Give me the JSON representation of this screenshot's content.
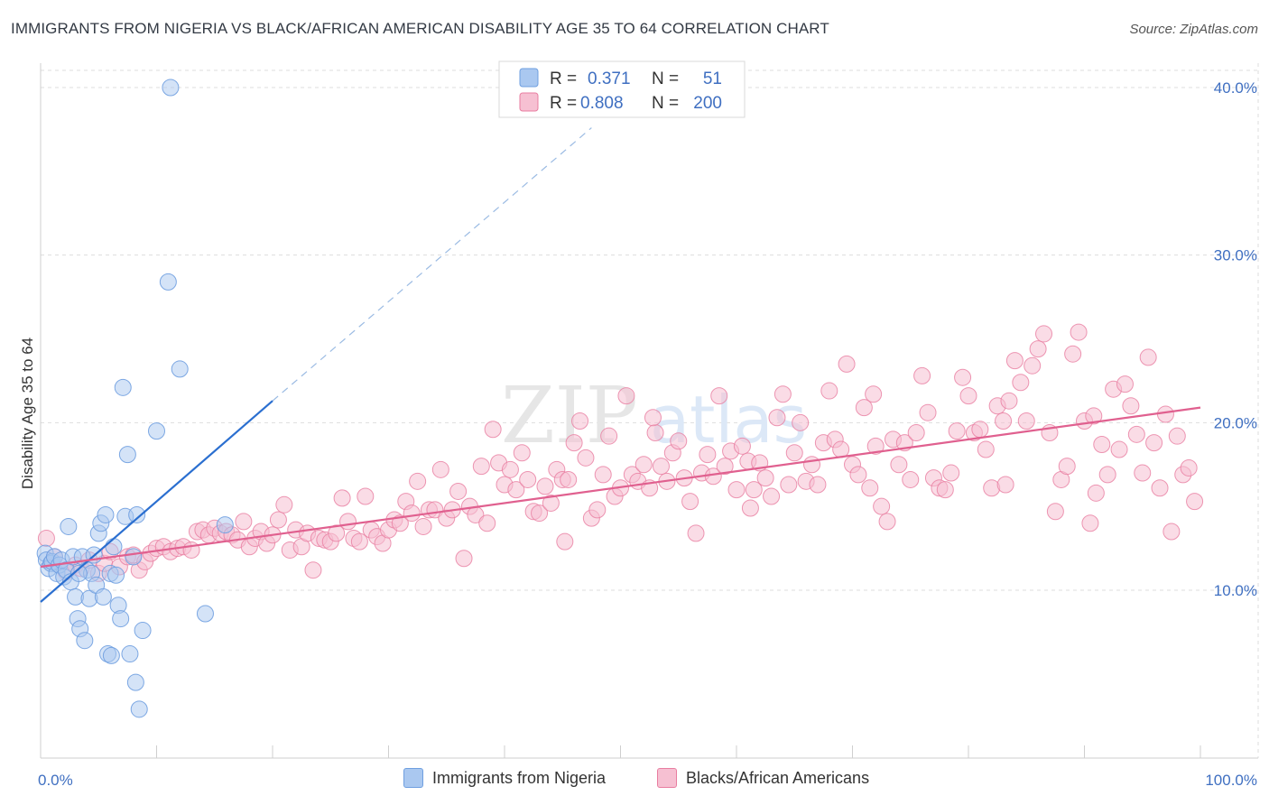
{
  "title": "IMMIGRANTS FROM NIGERIA VS BLACK/AFRICAN AMERICAN DISABILITY AGE 35 TO 64 CORRELATION CHART",
  "source": "Source: ZipAtlas.com",
  "watermark": {
    "zip": "ZIP",
    "atlas": "atlas"
  },
  "colors": {
    "blue": "#6f9fe0",
    "blue_fill": "#aac8f0",
    "blue_line": "#2b6fd0",
    "pink": "#e87da0",
    "pink_fill": "#f6c0d2",
    "pink_line": "#e0608f",
    "label": "#3f6fc1",
    "grid": "#dddddd"
  },
  "legend": {
    "rows": [
      {
        "r_label": "R =",
        "r_value": "0.371",
        "n_label": "N =",
        "n_value": "51"
      },
      {
        "r_label": "R =",
        "r_value": "0.808",
        "n_label": "N =",
        "n_value": "200"
      }
    ]
  },
  "bottom_legend": [
    "Immigrants from Nigeria",
    "Blacks/African Americans"
  ],
  "chart_data": {
    "type": "scatter",
    "title": "IMMIGRANTS FROM NIGERIA VS BLACK/AFRICAN AMERICAN DISABILITY AGE 35 TO 64 CORRELATION CHART",
    "xlabel": "",
    "ylabel": "Disability Age 35 to 64",
    "xlim": [
      0,
      100
    ],
    "ylim": [
      0,
      41
    ],
    "y_ticks": [
      10,
      20,
      30,
      40
    ],
    "y_tick_labels": [
      "10.0%",
      "20.0%",
      "30.0%",
      "40.0%"
    ],
    "x_tick_labels": [
      "0.0%",
      "100.0%"
    ],
    "grid": true,
    "legend_position": "top-center",
    "series": [
      {
        "name": "Immigrants from Nigeria",
        "trend": {
          "x": [
            0,
            20
          ],
          "y": [
            9.3,
            21.3
          ],
          "dashed_to": [
            47.5,
            37.6
          ]
        },
        "points": [
          [
            0.4,
            12.2
          ],
          [
            0.5,
            11.8
          ],
          [
            0.7,
            11.3
          ],
          [
            0.9,
            11.6
          ],
          [
            1.0,
            11.7
          ],
          [
            1.2,
            12.0
          ],
          [
            1.4,
            11.0
          ],
          [
            1.6,
            11.5
          ],
          [
            1.8,
            11.8
          ],
          [
            2.0,
            10.8
          ],
          [
            2.2,
            11.2
          ],
          [
            2.4,
            13.8
          ],
          [
            2.6,
            10.5
          ],
          [
            2.8,
            12.0
          ],
          [
            3.0,
            9.6
          ],
          [
            3.2,
            8.3
          ],
          [
            3.4,
            7.7
          ],
          [
            3.6,
            12.0
          ],
          [
            3.8,
            7.0
          ],
          [
            4.0,
            11.2
          ],
          [
            4.2,
            9.5
          ],
          [
            4.4,
            11.0
          ],
          [
            4.6,
            12.1
          ],
          [
            4.8,
            10.3
          ],
          [
            5.0,
            13.4
          ],
          [
            5.2,
            14.0
          ],
          [
            5.4,
            9.6
          ],
          [
            5.6,
            14.5
          ],
          [
            5.8,
            6.2
          ],
          [
            6.0,
            11.0
          ],
          [
            6.3,
            12.6
          ],
          [
            6.5,
            10.9
          ],
          [
            6.7,
            9.1
          ],
          [
            6.9,
            8.3
          ],
          [
            7.1,
            22.1
          ],
          [
            7.3,
            14.4
          ],
          [
            7.5,
            18.1
          ],
          [
            7.7,
            6.2
          ],
          [
            8.0,
            12.0
          ],
          [
            8.3,
            14.5
          ],
          [
            8.5,
            2.9
          ],
          [
            8.8,
            7.6
          ],
          [
            10.0,
            19.5
          ],
          [
            11.0,
            28.4
          ],
          [
            11.2,
            40.0
          ],
          [
            12.0,
            23.2
          ],
          [
            14.2,
            8.6
          ],
          [
            15.9,
            13.9
          ],
          [
            3.3,
            11.0
          ],
          [
            8.2,
            4.5
          ],
          [
            6.1,
            6.1
          ]
        ]
      },
      {
        "name": "Blacks/African Americans",
        "trend": {
          "x": [
            0,
            100
          ],
          "y": [
            11.4,
            20.9
          ]
        },
        "points": [
          [
            0.5,
            13.1
          ],
          [
            1.2,
            12.0
          ],
          [
            2.2,
            11.1
          ],
          [
            3.0,
            11.5
          ],
          [
            3.5,
            11.3
          ],
          [
            4.2,
            11.8
          ],
          [
            5.0,
            11.0
          ],
          [
            5.5,
            11.6
          ],
          [
            6.0,
            12.3
          ],
          [
            6.8,
            11.4
          ],
          [
            7.5,
            12.0
          ],
          [
            8.0,
            12.1
          ],
          [
            8.5,
            11.2
          ],
          [
            9.0,
            11.7
          ],
          [
            9.5,
            12.2
          ],
          [
            10.0,
            12.5
          ],
          [
            10.6,
            12.6
          ],
          [
            11.2,
            12.3
          ],
          [
            11.8,
            12.5
          ],
          [
            12.3,
            12.6
          ],
          [
            13.0,
            12.4
          ],
          [
            13.5,
            13.5
          ],
          [
            14.0,
            13.6
          ],
          [
            14.5,
            13.3
          ],
          [
            15.0,
            13.7
          ],
          [
            15.5,
            13.4
          ],
          [
            16.0,
            13.5
          ],
          [
            16.5,
            13.3
          ],
          [
            17.0,
            13.0
          ],
          [
            17.5,
            14.1
          ],
          [
            18.0,
            12.6
          ],
          [
            18.5,
            13.1
          ],
          [
            19.0,
            13.5
          ],
          [
            19.5,
            12.8
          ],
          [
            20.0,
            13.3
          ],
          [
            20.5,
            14.2
          ],
          [
            21.0,
            15.1
          ],
          [
            21.5,
            12.4
          ],
          [
            22.0,
            13.6
          ],
          [
            22.5,
            12.6
          ],
          [
            23.0,
            13.4
          ],
          [
            23.5,
            11.2
          ],
          [
            24.0,
            13.1
          ],
          [
            24.5,
            13.0
          ],
          [
            25.0,
            12.9
          ],
          [
            25.5,
            13.4
          ],
          [
            26.0,
            15.5
          ],
          [
            26.5,
            14.1
          ],
          [
            27.0,
            13.1
          ],
          [
            27.5,
            12.9
          ],
          [
            28.0,
            15.6
          ],
          [
            28.5,
            13.6
          ],
          [
            29.0,
            13.2
          ],
          [
            29.5,
            12.8
          ],
          [
            30.0,
            13.6
          ],
          [
            30.5,
            14.2
          ],
          [
            31.0,
            14.0
          ],
          [
            31.5,
            15.3
          ],
          [
            32.0,
            14.6
          ],
          [
            32.5,
            16.5
          ],
          [
            33.0,
            13.8
          ],
          [
            33.5,
            14.8
          ],
          [
            34.0,
            14.8
          ],
          [
            34.5,
            17.2
          ],
          [
            35.0,
            14.3
          ],
          [
            35.5,
            14.8
          ],
          [
            36.0,
            15.9
          ],
          [
            36.5,
            11.9
          ],
          [
            37.0,
            15.0
          ],
          [
            37.5,
            14.5
          ],
          [
            38.0,
            17.4
          ],
          [
            38.5,
            14.0
          ],
          [
            39.0,
            19.6
          ],
          [
            39.5,
            17.6
          ],
          [
            40.0,
            16.3
          ],
          [
            40.5,
            17.2
          ],
          [
            41.0,
            16.0
          ],
          [
            41.5,
            18.2
          ],
          [
            42.0,
            16.6
          ],
          [
            42.5,
            14.7
          ],
          [
            43.0,
            14.6
          ],
          [
            43.5,
            16.2
          ],
          [
            44.0,
            15.2
          ],
          [
            44.5,
            17.2
          ],
          [
            45.0,
            16.6
          ],
          [
            45.5,
            16.6
          ],
          [
            46.0,
            18.8
          ],
          [
            46.5,
            20.1
          ],
          [
            47.0,
            17.9
          ],
          [
            47.5,
            14.3
          ],
          [
            48.0,
            14.8
          ],
          [
            48.5,
            16.9
          ],
          [
            49.0,
            19.2
          ],
          [
            49.5,
            15.6
          ],
          [
            50.0,
            16.1
          ],
          [
            50.5,
            21.6
          ],
          [
            51.0,
            16.9
          ],
          [
            51.5,
            16.5
          ],
          [
            52.0,
            17.5
          ],
          [
            52.5,
            16.1
          ],
          [
            53.0,
            19.4
          ],
          [
            53.5,
            17.4
          ],
          [
            54.0,
            16.5
          ],
          [
            54.5,
            18.2
          ],
          [
            55.0,
            18.9
          ],
          [
            55.5,
            16.7
          ],
          [
            56.0,
            15.3
          ],
          [
            56.5,
            13.4
          ],
          [
            57.0,
            17.0
          ],
          [
            57.5,
            18.1
          ],
          [
            58.0,
            16.8
          ],
          [
            58.5,
            21.6
          ],
          [
            59.0,
            17.4
          ],
          [
            59.5,
            18.3
          ],
          [
            60.0,
            16.0
          ],
          [
            60.5,
            18.6
          ],
          [
            61.0,
            17.7
          ],
          [
            61.5,
            16.0
          ],
          [
            62.0,
            17.6
          ],
          [
            62.5,
            16.7
          ],
          [
            63.0,
            15.6
          ],
          [
            63.5,
            20.3
          ],
          [
            64.0,
            21.7
          ],
          [
            64.5,
            16.3
          ],
          [
            65.0,
            18.2
          ],
          [
            65.5,
            20.0
          ],
          [
            66.0,
            16.5
          ],
          [
            66.5,
            17.5
          ],
          [
            67.0,
            16.3
          ],
          [
            67.5,
            18.8
          ],
          [
            68.0,
            21.9
          ],
          [
            68.5,
            19.0
          ],
          [
            69.0,
            18.4
          ],
          [
            69.5,
            23.5
          ],
          [
            70.0,
            17.5
          ],
          [
            70.5,
            16.9
          ],
          [
            71.0,
            20.9
          ],
          [
            71.5,
            16.1
          ],
          [
            72.0,
            18.6
          ],
          [
            72.5,
            15.0
          ],
          [
            73.0,
            14.1
          ],
          [
            73.5,
            19.0
          ],
          [
            74.0,
            17.5
          ],
          [
            74.5,
            18.8
          ],
          [
            75.0,
            16.6
          ],
          [
            75.5,
            19.4
          ],
          [
            76.0,
            22.8
          ],
          [
            76.5,
            20.6
          ],
          [
            77.0,
            16.7
          ],
          [
            77.5,
            16.1
          ],
          [
            78.0,
            16.0
          ],
          [
            78.5,
            17.0
          ],
          [
            79.0,
            19.5
          ],
          [
            79.5,
            22.7
          ],
          [
            80.0,
            21.6
          ],
          [
            80.5,
            19.4
          ],
          [
            81.0,
            19.6
          ],
          [
            81.5,
            18.4
          ],
          [
            82.0,
            16.1
          ],
          [
            82.5,
            21.0
          ],
          [
            83.0,
            20.1
          ],
          [
            83.5,
            21.3
          ],
          [
            84.0,
            23.7
          ],
          [
            84.5,
            22.4
          ],
          [
            85.0,
            20.1
          ],
          [
            85.5,
            23.4
          ],
          [
            86.0,
            24.4
          ],
          [
            86.5,
            25.3
          ],
          [
            87.0,
            19.4
          ],
          [
            87.5,
            14.7
          ],
          [
            88.0,
            16.6
          ],
          [
            88.5,
            17.4
          ],
          [
            89.0,
            24.1
          ],
          [
            89.5,
            25.4
          ],
          [
            90.0,
            20.1
          ],
          [
            90.5,
            14.0
          ],
          [
            91.0,
            15.8
          ],
          [
            91.5,
            18.7
          ],
          [
            92.0,
            16.9
          ],
          [
            92.5,
            22.0
          ],
          [
            93.0,
            18.4
          ],
          [
            93.5,
            22.3
          ],
          [
            94.0,
            21.0
          ],
          [
            94.5,
            19.3
          ],
          [
            95.0,
            17.0
          ],
          [
            95.5,
            23.9
          ],
          [
            96.0,
            18.8
          ],
          [
            96.5,
            16.1
          ],
          [
            97.0,
            20.5
          ],
          [
            97.5,
            13.5
          ],
          [
            98.0,
            19.2
          ],
          [
            98.5,
            16.9
          ],
          [
            99.0,
            17.3
          ],
          [
            99.5,
            15.3
          ],
          [
            52.8,
            20.3
          ],
          [
            61.2,
            14.9
          ],
          [
            71.8,
            21.7
          ],
          [
            83.2,
            16.3
          ],
          [
            90.8,
            20.4
          ],
          [
            45.2,
            12.9
          ]
        ]
      }
    ]
  }
}
